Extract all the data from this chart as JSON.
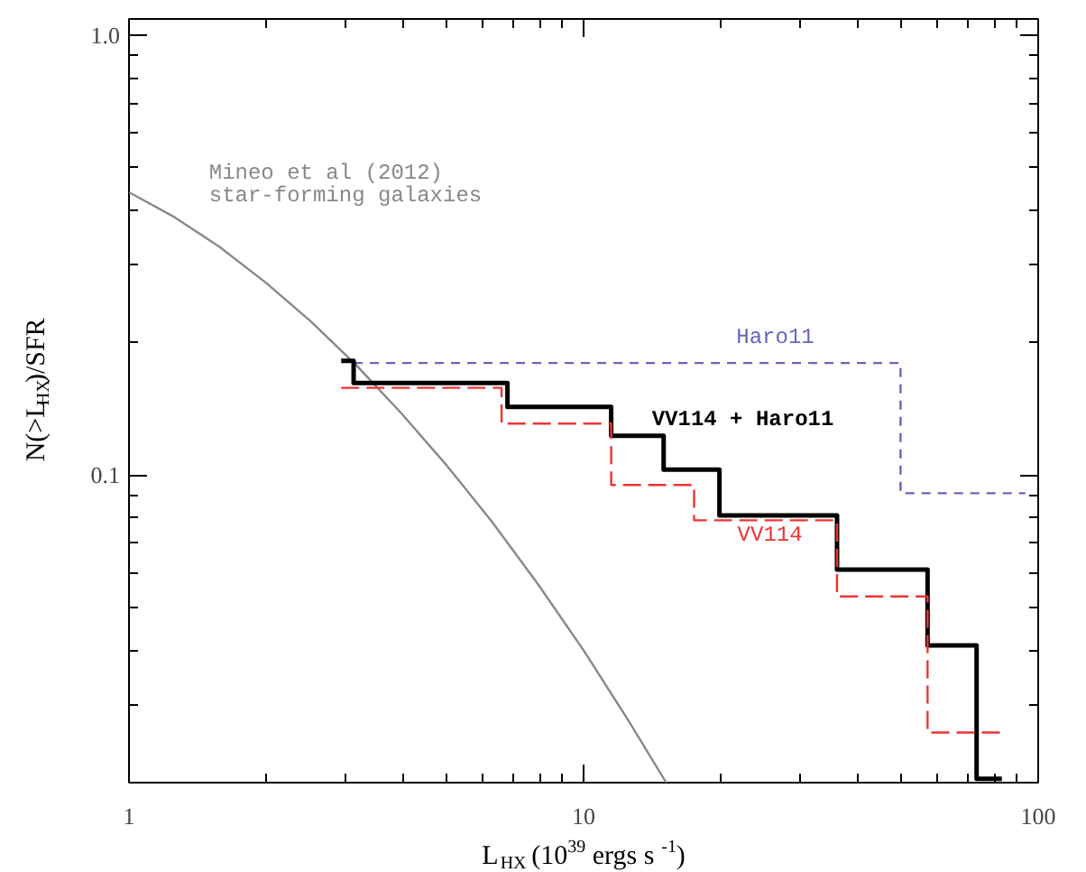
{
  "chart_data": {
    "type": "step",
    "xlabel": "L$_{HX}$ (10$^{39}$ ergs s$^{-1}$)",
    "ylabel": "N(>L$_{HX}$)/SFR",
    "log": "xy",
    "grid": false,
    "legend": false,
    "xlim": [
      1,
      100
    ],
    "ylim": [
      0.02,
      1.09
    ],
    "xticks": [
      1,
      10,
      100
    ],
    "yticks": [
      {
        "value": 0.1,
        "label": "0.1"
      },
      {
        "value": 1,
        "label": "1.0"
      }
    ],
    "series": [
      {
        "name": "Mineo et al (2012)\nstar-forming galaxies",
        "type": "line",
        "color": "#888888",
        "line_style": "solid",
        "x": [
          1,
          1.26,
          1.585,
          2.0,
          2.51,
          3.16,
          3.98,
          5.01,
          6.31,
          7.94,
          10,
          12.6,
          15.2
        ],
        "values": [
          0.44,
          0.386,
          0.33,
          0.274,
          0.224,
          0.178,
          0.138,
          0.105,
          0.078,
          0.0565,
          0.04,
          0.0275,
          0.02
        ]
      },
      {
        "name": "Haro11",
        "color": "#6666bb",
        "line_style": "dashed",
        "x": [
          3.12,
          49.8,
          93.7
        ],
        "values": [
          0.18,
          0.091,
          0.091
        ]
      },
      {
        "name": "VV114 + Haro11",
        "color": "#000000",
        "line_style": "solid",
        "x": [
          2.93,
          3.12,
          6.8,
          11.5,
          15.0,
          19.9,
          36.1,
          57.1,
          73.2,
          83.2
        ],
        "values": [
          0.182,
          0.162,
          0.143,
          0.123,
          0.103,
          0.081,
          0.061,
          0.041,
          0.0204,
          0.0204
        ]
      },
      {
        "name": "VV114",
        "color": "#ee3333",
        "line_style": "dashed",
        "x": [
          2.93,
          6.6,
          11.5,
          17.5,
          36.1,
          57.1,
          84
        ],
        "values": [
          0.158,
          0.131,
          0.095,
          0.079,
          0.053,
          0.026,
          0.026
        ]
      }
    ]
  }
}
